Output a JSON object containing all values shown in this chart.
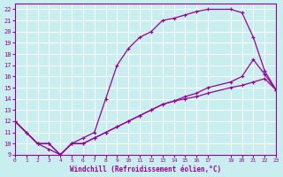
{
  "xlabel": "Windchill (Refroidissement éolien,°C)",
  "ylabel": "",
  "bg_color": "#c8eef0",
  "line_color": "#990099",
  "grid_color": "#ffffff",
  "xlim": [
    0,
    23
  ],
  "ylim": [
    9,
    22.5
  ],
  "xticks": [
    0,
    1,
    2,
    3,
    4,
    5,
    6,
    7,
    8,
    9,
    10,
    11,
    12,
    13,
    14,
    15,
    16,
    17,
    19,
    20,
    21,
    22,
    23
  ],
  "yticks": [
    9,
    10,
    11,
    12,
    13,
    14,
    15,
    16,
    17,
    18,
    19,
    20,
    21,
    22
  ],
  "curve1_x": [
    0,
    1,
    2,
    3,
    4,
    5,
    6,
    7,
    8,
    9,
    10,
    11,
    12,
    13,
    14,
    15,
    16,
    17,
    19,
    20,
    21,
    22,
    23
  ],
  "curve1_y": [
    12,
    11,
    10,
    9.5,
    9,
    10,
    10.5,
    11,
    14,
    17,
    18.5,
    19.5,
    20,
    21,
    21.2,
    21.5,
    21.8,
    22,
    22,
    21.7,
    19.5,
    16.5,
    14.8
  ],
  "curve2_x": [
    0,
    1,
    2,
    3,
    4,
    5,
    6,
    7,
    8,
    9,
    10,
    11,
    12,
    13,
    14,
    15,
    16,
    17,
    19,
    20,
    21,
    22,
    23
  ],
  "curve2_y": [
    12,
    11,
    10,
    10,
    9,
    10,
    10,
    10.5,
    11,
    11.5,
    12,
    12.5,
    13,
    13.5,
    13.8,
    14,
    14.2,
    14.5,
    15,
    15.2,
    15.5,
    15.8,
    14.8
  ],
  "curve3_x": [
    0,
    2,
    3,
    4,
    5,
    6,
    7,
    8,
    9,
    10,
    11,
    12,
    13,
    14,
    15,
    16,
    17,
    19,
    20,
    21,
    22,
    23
  ],
  "curve3_y": [
    12,
    10,
    10,
    9,
    10,
    10,
    10.5,
    11,
    11.5,
    12,
    12.5,
    13,
    13.5,
    13.8,
    14.2,
    14.5,
    15,
    15.5,
    16,
    17.5,
    16.2,
    14.8
  ]
}
